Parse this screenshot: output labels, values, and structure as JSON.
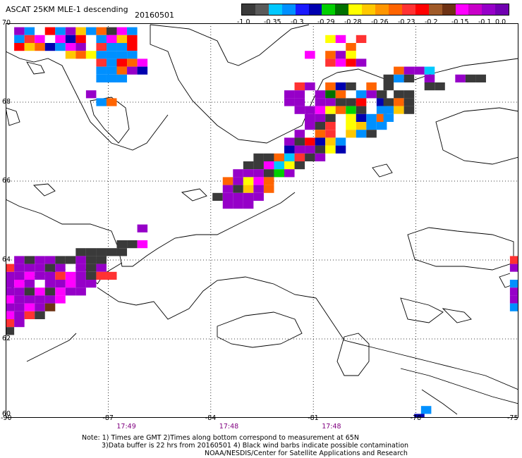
{
  "header": {
    "title": "ASCAT 25KM MLE-1 descending",
    "date": "20160501"
  },
  "colorbar": {
    "colors": [
      "#3a3a3a",
      "#5a5a5a",
      "#00c8ff",
      "#0090ff",
      "#1a1aff",
      "#0000b0",
      "#00d000",
      "#007000",
      "#ffff00",
      "#ffc800",
      "#ff9600",
      "#ff6400",
      "#ff3232",
      "#ff0000",
      "#a05a28",
      "#6e3214",
      "#ff00ff",
      "#c800c8",
      "#9600c8",
      "#7000b0"
    ],
    "labels": [
      "-1.0",
      "-0.35",
      "-0.3",
      "-0.29",
      "-0.28",
      "-0.26",
      "-0.23",
      "-0.2",
      "-0.15",
      "-0.1",
      "0.0"
    ]
  },
  "axes": {
    "lon_ticks": [
      "-90",
      "-87",
      "-84",
      "-81",
      "-78",
      "-75"
    ],
    "lat_ticks": [
      "70",
      "68",
      "66",
      "64",
      "62",
      "60"
    ],
    "times": [
      "17:49",
      "17:48",
      "17:48"
    ]
  },
  "notes": {
    "line1": "Note: 1) Times are GMT 2)Times along bottom correspond to measurement at 65N",
    "line2": "3)Data buffer is 22 hrs from 20160501 4) Black wind barbs indicate possible contamination",
    "line3": "NOAA/NESDIS/Center for Satellite Applications and Research"
  },
  "map_data": {
    "lon_range": [
      -90,
      -75
    ],
    "lat_range": [
      60,
      70
    ],
    "cells": [
      [
        -89.6,
        69.8,
        "#9600c8"
      ],
      [
        -89.3,
        69.8,
        "#0090ff"
      ],
      [
        -89.0,
        69.8,
        "#ffffff"
      ],
      [
        -88.7,
        69.8,
        "#ff0000"
      ],
      [
        -88.4,
        69.8,
        "#0090ff"
      ],
      [
        -88.1,
        69.8,
        "#9600c8"
      ],
      [
        -87.8,
        69.8,
        "#ffc800"
      ],
      [
        -87.5,
        69.8,
        "#0090ff"
      ],
      [
        -87.2,
        69.8,
        "#ff6400"
      ],
      [
        -86.9,
        69.8,
        "#3a3a3a"
      ],
      [
        -86.6,
        69.8,
        "#ff00ff"
      ],
      [
        -86.3,
        69.8,
        "#0090ff"
      ],
      [
        -89.6,
        69.6,
        "#0090ff"
      ],
      [
        -89.3,
        69.6,
        "#ff3232"
      ],
      [
        -89.0,
        69.6,
        "#ff00ff"
      ],
      [
        -88.7,
        69.6,
        "#ffffff"
      ],
      [
        -88.4,
        69.6,
        "#ff00ff"
      ],
      [
        -88.1,
        69.6,
        "#0000b0"
      ],
      [
        -87.8,
        69.6,
        "#ff0000"
      ],
      [
        -87.5,
        69.6,
        "#ffffff"
      ],
      [
        -87.2,
        69.6,
        "#0090ff"
      ],
      [
        -86.9,
        69.6,
        "#ff00ff"
      ],
      [
        -86.6,
        69.6,
        "#ffc800"
      ],
      [
        -86.3,
        69.6,
        "#ff0000"
      ],
      [
        -89.6,
        69.4,
        "#ff0000"
      ],
      [
        -89.3,
        69.4,
        "#ffc800"
      ],
      [
        -89.0,
        69.4,
        "#ff6400"
      ],
      [
        -88.7,
        69.4,
        "#0000b0"
      ],
      [
        -88.4,
        69.4,
        "#0090ff"
      ],
      [
        -88.1,
        69.4,
        "#ff00ff"
      ],
      [
        -87.8,
        69.4,
        "#9600c8"
      ],
      [
        -87.5,
        69.4,
        "#ffffff"
      ],
      [
        -87.2,
        69.4,
        "#ff3232"
      ],
      [
        -86.9,
        69.4,
        "#0090ff"
      ],
      [
        -86.6,
        69.4,
        "#0090ff"
      ],
      [
        -86.3,
        69.4,
        "#ff0000"
      ],
      [
        -88.1,
        69.2,
        "#ffc800"
      ],
      [
        -87.8,
        69.2,
        "#ff6400"
      ],
      [
        -87.5,
        69.2,
        "#ffff00"
      ],
      [
        -87.2,
        69.2,
        "#0090ff"
      ],
      [
        -86.9,
        69.2,
        "#0090ff"
      ],
      [
        -86.6,
        69.2,
        "#0090ff"
      ],
      [
        -86.3,
        69.2,
        "#0090ff"
      ],
      [
        -87.2,
        69.0,
        "#ff3232"
      ],
      [
        -86.9,
        69.0,
        "#0090ff"
      ],
      [
        -86.6,
        69.0,
        "#ff0000"
      ],
      [
        -86.3,
        69.0,
        "#ff6400"
      ],
      [
        -86.0,
        69.0,
        "#ff00ff"
      ],
      [
        -87.2,
        68.8,
        "#0090ff"
      ],
      [
        -86.9,
        68.8,
        "#0090ff"
      ],
      [
        -86.6,
        68.8,
        "#ff6400"
      ],
      [
        -86.3,
        68.8,
        "#9600c8"
      ],
      [
        -86.0,
        68.8,
        "#0000b0"
      ],
      [
        -87.2,
        68.6,
        "#0090ff"
      ],
      [
        -86.9,
        68.6,
        "#0090ff"
      ],
      [
        -86.6,
        68.6,
        "#0090ff"
      ],
      [
        -87.5,
        68.2,
        "#9600c8"
      ],
      [
        -87.2,
        68.0,
        "#0090ff"
      ],
      [
        -86.9,
        68.0,
        "#ff6400"
      ],
      [
        -80.5,
        69.6,
        "#ffff00"
      ],
      [
        -80.2,
        69.6,
        "#ff00ff"
      ],
      [
        -79.6,
        69.6,
        "#ff3232"
      ],
      [
        -79.9,
        69.4,
        "#ff6400"
      ],
      [
        -81.1,
        69.2,
        "#ff00ff"
      ],
      [
        -80.5,
        69.2,
        "#ff6400"
      ],
      [
        -80.2,
        69.2,
        "#9600c8"
      ],
      [
        -79.9,
        69.2,
        "#ffff00"
      ],
      [
        -80.8,
        69.0,
        "#ffffff"
      ],
      [
        -80.5,
        69.0,
        "#ff3232"
      ],
      [
        -80.2,
        69.0,
        "#ff00ff"
      ],
      [
        -79.9,
        69.0,
        "#ff0000"
      ],
      [
        -79.6,
        69.0,
        "#9600c8"
      ],
      [
        -78.5,
        68.8,
        "#ff6400"
      ],
      [
        -78.2,
        68.8,
        "#9600c8"
      ],
      [
        -77.9,
        68.8,
        "#9600c8"
      ],
      [
        -77.6,
        68.8,
        "#00c8ff"
      ],
      [
        -78.8,
        68.6,
        "#3a3a3a"
      ],
      [
        -78.5,
        68.6,
        "#0090ff"
      ],
      [
        -78.2,
        68.6,
        "#3a3a3a"
      ],
      [
        -77.6,
        68.6,
        "#9600c8"
      ],
      [
        -76.7,
        68.6,
        "#9600c8"
      ],
      [
        -76.4,
        68.6,
        "#3a3a3a"
      ],
      [
        -76.1,
        68.6,
        "#3a3a3a"
      ],
      [
        -81.4,
        68.4,
        "#ff3232"
      ],
      [
        -81.1,
        68.4,
        "#9600c8"
      ],
      [
        -80.5,
        68.4,
        "#ff6400"
      ],
      [
        -80.2,
        68.4,
        "#0000b0"
      ],
      [
        -79.9,
        68.4,
        "#3a3a3a"
      ],
      [
        -79.3,
        68.4,
        "#ff6400"
      ],
      [
        -78.8,
        68.4,
        "#3a3a3a"
      ],
      [
        -77.6,
        68.4,
        "#3a3a3a"
      ],
      [
        -77.3,
        68.4,
        "#3a3a3a"
      ],
      [
        -81.7,
        68.2,
        "#9600c8"
      ],
      [
        -81.4,
        68.2,
        "#9600c8"
      ],
      [
        -80.8,
        68.2,
        "#9600c8"
      ],
      [
        -80.5,
        68.2,
        "#007000"
      ],
      [
        -80.2,
        68.2,
        "#ff6400"
      ],
      [
        -79.6,
        68.2,
        "#0090ff"
      ],
      [
        -79.3,
        68.2,
        "#9600c8"
      ],
      [
        -79.0,
        68.2,
        "#3a3a3a"
      ],
      [
        -78.5,
        68.2,
        "#3a3a3a"
      ],
      [
        -78.2,
        68.2,
        "#3a3a3a"
      ],
      [
        -81.7,
        68.0,
        "#9600c8"
      ],
      [
        -81.4,
        68.0,
        "#9600c8"
      ],
      [
        -80.8,
        68.0,
        "#9600c8"
      ],
      [
        -80.5,
        68.0,
        "#9600c8"
      ],
      [
        -80.2,
        68.0,
        "#3a3a3a"
      ],
      [
        -79.9,
        68.0,
        "#3a3a3a"
      ],
      [
        -79.6,
        68.0,
        "#ff0000"
      ],
      [
        -79.0,
        68.0,
        "#0000b0"
      ],
      [
        -78.8,
        68.0,
        "#3a3a3a"
      ],
      [
        -78.5,
        68.0,
        "#ff6400"
      ],
      [
        -78.2,
        68.0,
        "#3a3a3a"
      ],
      [
        -81.4,
        67.8,
        "#9600c8"
      ],
      [
        -81.1,
        67.8,
        "#9600c8"
      ],
      [
        -80.8,
        67.8,
        "#ff00ff"
      ],
      [
        -80.5,
        67.8,
        "#ffff00"
      ],
      [
        -80.2,
        67.8,
        "#ff6400"
      ],
      [
        -79.9,
        67.8,
        "#00d000"
      ],
      [
        -79.6,
        67.8,
        "#3a3a3a"
      ],
      [
        -79.0,
        67.8,
        "#0090ff"
      ],
      [
        -78.8,
        67.8,
        "#0090ff"
      ],
      [
        -78.5,
        67.8,
        "#ffc800"
      ],
      [
        -78.2,
        67.8,
        "#3a3a3a"
      ],
      [
        -81.1,
        67.6,
        "#9600c8"
      ],
      [
        -80.8,
        67.6,
        "#9600c8"
      ],
      [
        -80.5,
        67.6,
        "#3a3a3a"
      ],
      [
        -79.9,
        67.6,
        "#ffff00"
      ],
      [
        -79.6,
        67.6,
        "#0000b0"
      ],
      [
        -79.3,
        67.6,
        "#0090ff"
      ],
      [
        -79.0,
        67.6,
        "#ff6400"
      ],
      [
        -78.8,
        67.6,
        "#0090ff"
      ],
      [
        -78.5,
        67.6,
        "#ffffff"
      ],
      [
        -81.1,
        67.4,
        "#9600c8"
      ],
      [
        -80.8,
        67.4,
        "#3a3a3a"
      ],
      [
        -80.5,
        67.4,
        "#ff3232"
      ],
      [
        -79.9,
        67.4,
        "#ffff00"
      ],
      [
        -79.6,
        67.4,
        "#ffc800"
      ],
      [
        -79.3,
        67.4,
        "#0090ff"
      ],
      [
        -79.0,
        67.4,
        "#0090ff"
      ],
      [
        -81.4,
        67.2,
        "#9600c8"
      ],
      [
        -80.8,
        67.2,
        "#ff6400"
      ],
      [
        -80.5,
        67.2,
        "#ff3232"
      ],
      [
        -79.9,
        67.2,
        "#ffc800"
      ],
      [
        -79.6,
        67.2,
        "#0090ff"
      ],
      [
        -79.3,
        67.2,
        "#3a3a3a"
      ],
      [
        -81.7,
        67.0,
        "#9600c8"
      ],
      [
        -81.4,
        67.0,
        "#3a3a3a"
      ],
      [
        -81.1,
        67.0,
        "#ff0000"
      ],
      [
        -80.8,
        67.0,
        "#0000b0"
      ],
      [
        -80.5,
        67.0,
        "#ffc800"
      ],
      [
        -80.2,
        67.0,
        "#0090ff"
      ],
      [
        -82.0,
        66.8,
        "#ffffff"
      ],
      [
        -81.7,
        66.8,
        "#0000b0"
      ],
      [
        -81.4,
        66.8,
        "#9600c8"
      ],
      [
        -81.1,
        66.8,
        "#9600c8"
      ],
      [
        -80.8,
        66.8,
        "#3a3a3a"
      ],
      [
        -80.5,
        66.8,
        "#ffff00"
      ],
      [
        -80.2,
        66.8,
        "#0000b0"
      ],
      [
        -82.6,
        66.6,
        "#3a3a3a"
      ],
      [
        -82.3,
        66.6,
        "#3a3a3a"
      ],
      [
        -82.0,
        66.6,
        "#ff6400"
      ],
      [
        -81.7,
        66.6,
        "#00c8ff"
      ],
      [
        -81.4,
        66.6,
        "#ff3232"
      ],
      [
        -81.1,
        66.6,
        "#3a3a3a"
      ],
      [
        -80.8,
        66.6,
        "#9600c8"
      ],
      [
        -82.9,
        66.4,
        "#3a3a3a"
      ],
      [
        -82.6,
        66.4,
        "#3a3a3a"
      ],
      [
        -82.3,
        66.4,
        "#ff00ff"
      ],
      [
        -82.0,
        66.4,
        "#00c8ff"
      ],
      [
        -81.7,
        66.4,
        "#ffff00"
      ],
      [
        -81.4,
        66.4,
        "#3a3a3a"
      ],
      [
        -83.2,
        66.2,
        "#9600c8"
      ],
      [
        -82.9,
        66.2,
        "#9600c8"
      ],
      [
        -82.6,
        66.2,
        "#9600c8"
      ],
      [
        -82.3,
        66.2,
        "#3a3a3a"
      ],
      [
        -82.0,
        66.2,
        "#00d000"
      ],
      [
        -81.7,
        66.2,
        "#9600c8"
      ],
      [
        -83.5,
        66.0,
        "#ff6400"
      ],
      [
        -83.2,
        66.0,
        "#9600c8"
      ],
      [
        -82.9,
        66.0,
        "#ffff00"
      ],
      [
        -82.6,
        66.0,
        "#ff00ff"
      ],
      [
        -82.3,
        66.0,
        "#ff6400"
      ],
      [
        -83.5,
        65.8,
        "#9600c8"
      ],
      [
        -83.2,
        65.8,
        "#3a3a3a"
      ],
      [
        -82.9,
        65.8,
        "#ffc800"
      ],
      [
        -82.6,
        65.8,
        "#9600c8"
      ],
      [
        -82.3,
        65.8,
        "#ff6400"
      ],
      [
        -83.8,
        65.6,
        "#3a3a3a"
      ],
      [
        -83.5,
        65.6,
        "#9600c8"
      ],
      [
        -83.2,
        65.6,
        "#9600c8"
      ],
      [
        -82.9,
        65.6,
        "#9600c8"
      ],
      [
        -82.6,
        65.6,
        "#9600c8"
      ],
      [
        -83.5,
        65.4,
        "#9600c8"
      ],
      [
        -83.2,
        65.4,
        "#9600c8"
      ],
      [
        -82.9,
        65.4,
        "#9600c8"
      ],
      [
        -86.0,
        64.8,
        "#9600c8"
      ],
      [
        -86.6,
        64.4,
        "#3a3a3a"
      ],
      [
        -86.3,
        64.4,
        "#3a3a3a"
      ],
      [
        -86.0,
        64.4,
        "#ff00ff"
      ],
      [
        -87.8,
        64.2,
        "#3a3a3a"
      ],
      [
        -87.5,
        64.2,
        "#3a3a3a"
      ],
      [
        -87.2,
        64.2,
        "#3a3a3a"
      ],
      [
        -86.9,
        64.2,
        "#3a3a3a"
      ],
      [
        -86.6,
        64.2,
        "#3a3a3a"
      ],
      [
        -89.6,
        64.0,
        "#9600c8"
      ],
      [
        -89.3,
        64.0,
        "#3a3a3a"
      ],
      [
        -89.0,
        64.0,
        "#9600c8"
      ],
      [
        -88.7,
        64.0,
        "#9600c8"
      ],
      [
        -88.4,
        64.0,
        "#3a3a3a"
      ],
      [
        -88.1,
        64.0,
        "#3a3a3a"
      ],
      [
        -87.8,
        64.0,
        "#9600c8"
      ],
      [
        -87.5,
        64.0,
        "#3a3a3a"
      ],
      [
        -87.2,
        64.0,
        "#3a3a3a"
      ],
      [
        -89.9,
        63.8,
        "#ff3232"
      ],
      [
        -89.6,
        63.8,
        "#9600c8"
      ],
      [
        -89.3,
        63.8,
        "#9600c8"
      ],
      [
        -89.0,
        63.8,
        "#9600c8"
      ],
      [
        -88.7,
        63.8,
        "#3a3a3a"
      ],
      [
        -88.4,
        63.8,
        "#9600c8"
      ],
      [
        -88.1,
        63.8,
        "#ffffff"
      ],
      [
        -87.8,
        63.8,
        "#9600c8"
      ],
      [
        -87.5,
        63.8,
        "#3a3a3a"
      ],
      [
        -87.2,
        63.8,
        "#9600c8"
      ],
      [
        -89.9,
        63.6,
        "#9600c8"
      ],
      [
        -89.6,
        63.6,
        "#9600c8"
      ],
      [
        -89.3,
        63.6,
        "#ff00ff"
      ],
      [
        -89.0,
        63.6,
        "#9600c8"
      ],
      [
        -88.7,
        63.6,
        "#9600c8"
      ],
      [
        -88.4,
        63.6,
        "#ff3232"
      ],
      [
        -88.1,
        63.6,
        "#ff00ff"
      ],
      [
        -87.8,
        63.6,
        "#9600c8"
      ],
      [
        -87.5,
        63.6,
        "#3a3a3a"
      ],
      [
        -87.2,
        63.6,
        "#ff3232"
      ],
      [
        -86.9,
        63.6,
        "#ff3232"
      ],
      [
        -89.9,
        63.4,
        "#9600c8"
      ],
      [
        -89.6,
        63.4,
        "#ff00ff"
      ],
      [
        -89.3,
        63.4,
        "#9600c8"
      ],
      [
        -89.0,
        63.4,
        "#ffffff"
      ],
      [
        -88.7,
        63.4,
        "#9600c8"
      ],
      [
        -88.4,
        63.4,
        "#9600c8"
      ],
      [
        -88.1,
        63.4,
        "#ff00ff"
      ],
      [
        -87.8,
        63.4,
        "#9600c8"
      ],
      [
        -87.5,
        63.4,
        "#9600c8"
      ],
      [
        -89.9,
        63.2,
        "#9600c8"
      ],
      [
        -89.6,
        63.2,
        "#9600c8"
      ],
      [
        -89.3,
        63.2,
        "#3a3a3a"
      ],
      [
        -89.0,
        63.2,
        "#ff00ff"
      ],
      [
        -88.7,
        63.2,
        "#3a3a3a"
      ],
      [
        -88.4,
        63.2,
        "#ff00ff"
      ],
      [
        -88.1,
        63.2,
        "#9600c8"
      ],
      [
        -87.8,
        63.2,
        "#9600c8"
      ],
      [
        -89.9,
        63.0,
        "#ff00ff"
      ],
      [
        -89.6,
        63.0,
        "#9600c8"
      ],
      [
        -89.3,
        63.0,
        "#9600c8"
      ],
      [
        -89.0,
        63.0,
        "#9600c8"
      ],
      [
        -88.7,
        63.0,
        "#9600c8"
      ],
      [
        -88.4,
        63.0,
        "#ff00ff"
      ],
      [
        -89.9,
        62.8,
        "#9600c8"
      ],
      [
        -89.6,
        62.8,
        "#9600c8"
      ],
      [
        -89.3,
        62.8,
        "#ff00ff"
      ],
      [
        -89.0,
        62.8,
        "#9600c8"
      ],
      [
        -88.7,
        62.8,
        "#6e3214"
      ],
      [
        -89.9,
        62.6,
        "#ff00ff"
      ],
      [
        -89.6,
        62.6,
        "#9600c8"
      ],
      [
        -89.3,
        62.6,
        "#ff3232"
      ],
      [
        -89.0,
        62.6,
        "#3a3a3a"
      ],
      [
        -89.9,
        62.4,
        "#ff3232"
      ],
      [
        -89.6,
        62.4,
        "#9600c8"
      ],
      [
        -89.9,
        62.2,
        "#3a3a3a"
      ],
      [
        -77.7,
        60.2,
        "#0090ff"
      ],
      [
        -77.9,
        60.0,
        "#0000b0"
      ],
      [
        -75.1,
        64.0,
        "#ff3232"
      ],
      [
        -75.1,
        63.8,
        "#9600c8"
      ],
      [
        -75.1,
        63.6,
        "#ffffff"
      ],
      [
        -75.1,
        63.4,
        "#0090ff"
      ],
      [
        -75.1,
        63.2,
        "#9600c8"
      ],
      [
        -75.1,
        63.0,
        "#9600c8"
      ],
      [
        -75.1,
        62.8,
        "#0090ff"
      ]
    ]
  }
}
